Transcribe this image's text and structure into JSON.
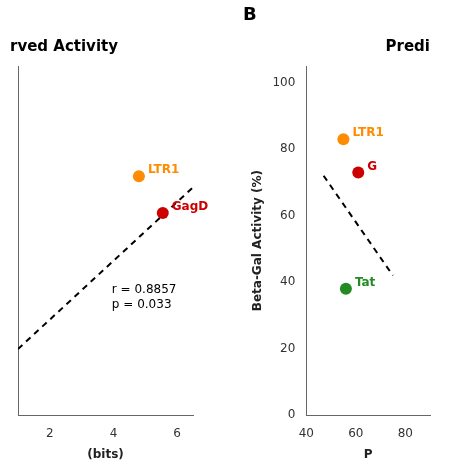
{
  "chart_data": [
    {
      "type": "scatter",
      "title": "rved Activity",
      "x_label": "(bits)",
      "xlim": [
        1.0,
        6.5
      ],
      "xticks": [
        2,
        4,
        6
      ],
      "ylim": [
        10,
        105
      ],
      "yticks": [],
      "tick_labels": "x",
      "grid": false,
      "annotations": [
        {
          "text": "r = 0.8857\np = 0.033",
          "x": 3.95,
          "y": 42
        }
      ],
      "series": [
        {
          "type": "scatter",
          "x": [
            4.8,
            5.55
          ],
          "values": [
            75,
            65
          ],
          "colors": [
            "#FF8C00",
            "#CC0000"
          ],
          "labels": [
            "LTR1",
            "GagD"
          ]
        },
        {
          "type": "line",
          "line_style": "dashed",
          "color": "#000000",
          "x": [
            1.0,
            6.5
          ],
          "values": [
            28,
            72
          ]
        }
      ]
    },
    {
      "type": "scatter",
      "title": "Predi",
      "panel_label": "B",
      "x_label": "P",
      "y_label": "Beta-Gal Activity (%)",
      "xlim": [
        40,
        90
      ],
      "xticks": [
        40,
        60,
        80
      ],
      "ylim": [
        0,
        105
      ],
      "yticks": [
        0,
        20,
        40,
        60,
        80,
        100
      ],
      "grid": false,
      "series": [
        {
          "type": "scatter",
          "x": [
            55,
            61,
            56
          ],
          "values": [
            83,
            73,
            38
          ],
          "colors": [
            "#FF8C00",
            "#CC0000",
            "#228B22"
          ],
          "labels": [
            "LTR1",
            "G",
            "Tat"
          ]
        },
        {
          "type": "line",
          "line_style": "dashed",
          "color": "#000000",
          "x": [
            47,
            75
          ],
          "values": [
            72,
            42
          ]
        }
      ]
    }
  ]
}
